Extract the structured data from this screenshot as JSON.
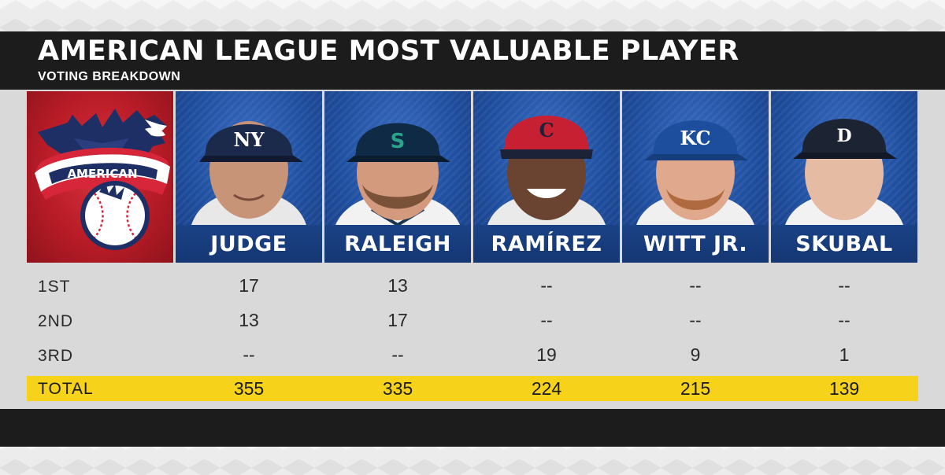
{
  "header": {
    "title": "AMERICAN LEAGUE MOST VALUABLE PLAYER",
    "subtitle": "VOTING BREAKDOWN"
  },
  "logo": {
    "banner_text": "AMERICAN",
    "icon": "american-league-eagle-logo"
  },
  "players": [
    {
      "name": "JUDGE",
      "team_cap": "NY",
      "cap_color": "#1b2a4a",
      "first": "17",
      "second": "13",
      "third": "--",
      "total": "355"
    },
    {
      "name": "RALEIGH",
      "team_cap": "S",
      "cap_color": "#0f2a44",
      "first": "13",
      "second": "17",
      "third": "--",
      "total": "335"
    },
    {
      "name": "RAMÍREZ",
      "team_cap": "C",
      "cap_color": "#c62032",
      "first": "--",
      "second": "--",
      "third": "19",
      "total": "224"
    },
    {
      "name": "WITT JR.",
      "team_cap": "KC",
      "cap_color": "#1d4e9e",
      "first": "--",
      "second": "--",
      "third": "9",
      "total": "215"
    },
    {
      "name": "SKUBAL",
      "team_cap": "D",
      "cap_color": "#1c2433",
      "first": "--",
      "second": "--",
      "third": "1",
      "total": "139"
    }
  ],
  "rows": {
    "first": "1ST",
    "second": "2ND",
    "third": "3RD",
    "total": "TOTAL"
  },
  "colors": {
    "header_bg": "#1c1c1c",
    "player_panel_blue": "#1f4fa0",
    "logo_red": "#b91c27",
    "total_yellow": "#f6d21a"
  }
}
